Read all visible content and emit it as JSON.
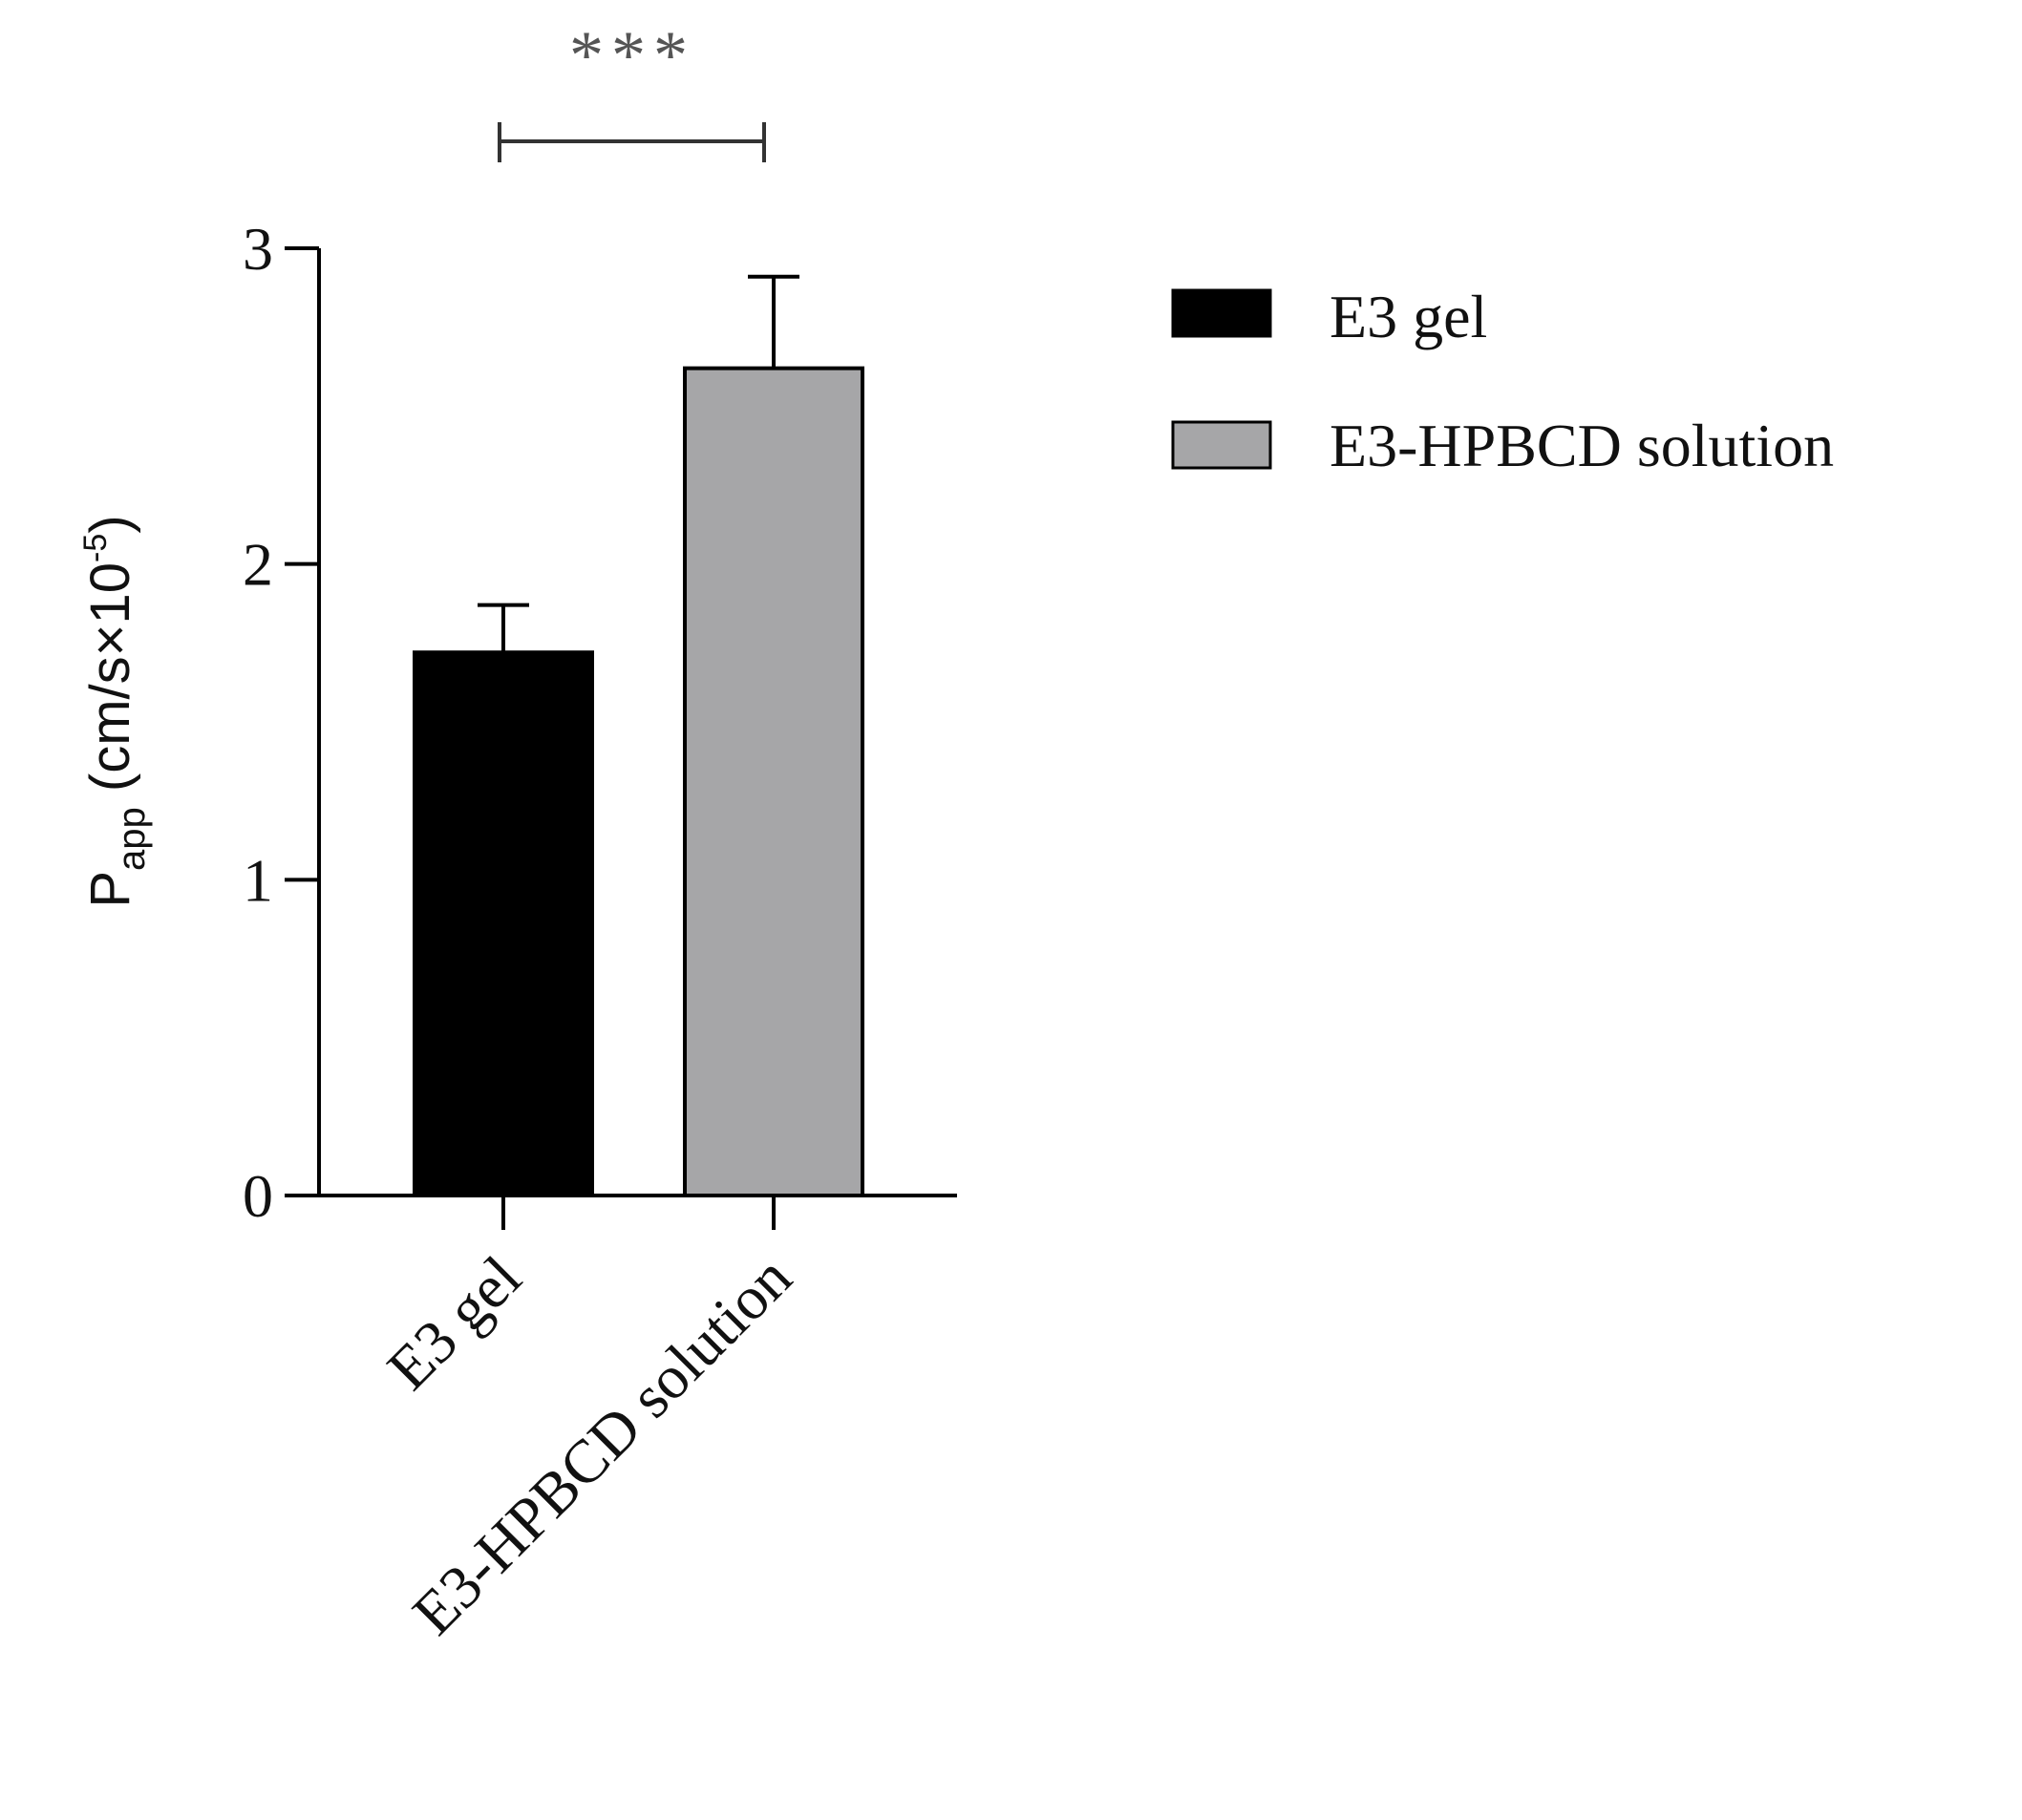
{
  "chart_data": {
    "type": "bar",
    "categories": [
      "E3 gel",
      "E3-HPBCD solution"
    ],
    "values": [
      1.72,
      2.62
    ],
    "errors": [
      0.15,
      0.29
    ],
    "colors": [
      "#000000",
      "#a6a6a8"
    ],
    "ylim": [
      0,
      3
    ],
    "yticks": [
      "0",
      "1",
      "2",
      "3"
    ],
    "ylabel": {
      "main": "P",
      "sub": "app",
      "unit_prefix": " (cm/s×10",
      "sup": "-5",
      "unit_suffix": ")"
    },
    "significance": "***",
    "legend": {
      "position": "right",
      "entries": [
        "E3 gel",
        "E3-HPBCD solution"
      ]
    },
    "grid": false
  }
}
